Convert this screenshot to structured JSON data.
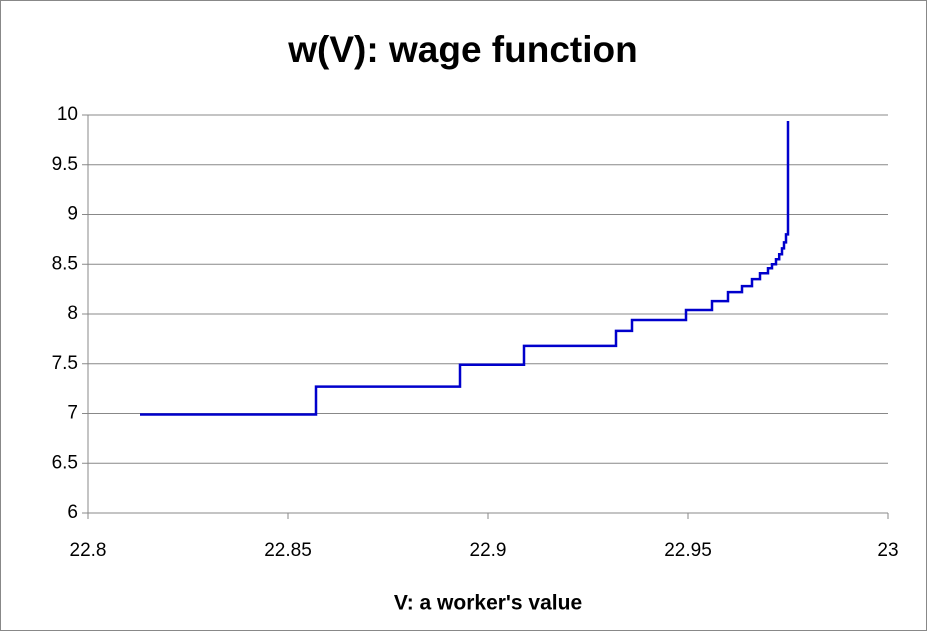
{
  "chart_data": {
    "type": "line",
    "title": "w(V): wage function",
    "x_label": "V: a worker's value",
    "x": [
      22.813,
      22.857,
      22.857,
      22.893,
      22.893,
      22.909,
      22.909,
      22.932,
      22.932,
      22.936,
      22.936,
      22.9495,
      22.9495,
      22.956,
      22.956,
      22.96,
      22.96,
      22.9635,
      22.9635,
      22.966,
      22.966,
      22.968,
      22.968,
      22.97,
      22.97,
      22.971,
      22.971,
      22.972,
      22.972,
      22.9728,
      22.9728,
      22.9735,
      22.9735,
      22.974,
      22.974,
      22.9745,
      22.9745,
      22.975,
      22.975
    ],
    "series": [
      {
        "color": "#0000cc",
        "values": [
          6.99,
          6.99,
          7.27,
          7.27,
          7.49,
          7.49,
          7.68,
          7.68,
          7.83,
          7.83,
          7.94,
          7.94,
          8.04,
          8.04,
          8.13,
          8.13,
          8.22,
          8.22,
          8.28,
          8.28,
          8.35,
          8.35,
          8.41,
          8.41,
          8.46,
          8.46,
          8.5,
          8.5,
          8.55,
          8.55,
          8.6,
          8.6,
          8.66,
          8.66,
          8.72,
          8.72,
          8.8,
          8.8,
          9.94
        ]
      }
    ],
    "xlim": [
      22.8,
      23
    ],
    "xticks": [
      22.8,
      22.85,
      22.9,
      22.95,
      23
    ],
    "ylim": [
      6,
      10
    ],
    "yticks": [
      6,
      6.5,
      7,
      7.5,
      8,
      8.5,
      9,
      9.5,
      10
    ],
    "grid": true
  }
}
